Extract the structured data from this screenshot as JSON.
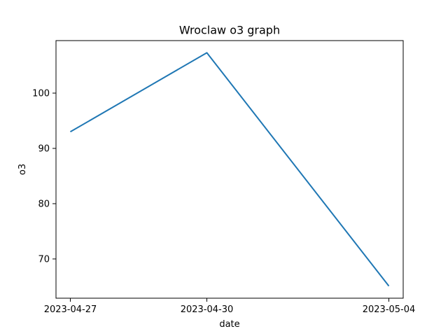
{
  "chart_data": {
    "type": "line",
    "title": "Wroclaw o3 graph",
    "xlabel": "date",
    "ylabel": "o3",
    "x": [
      "2023-04-27",
      "2023-04-30",
      "2023-05-04"
    ],
    "series": [
      {
        "values": [
          93.0,
          107.3,
          65.1
        ],
        "color": "#1f77b4"
      }
    ],
    "xticks": [
      "2023-04-27",
      "2023-04-30",
      "2023-05-04"
    ],
    "yticks": [
      70,
      80,
      90,
      100
    ],
    "ylim": [
      62.9,
      109.5
    ],
    "grid": false,
    "legend": "none"
  }
}
